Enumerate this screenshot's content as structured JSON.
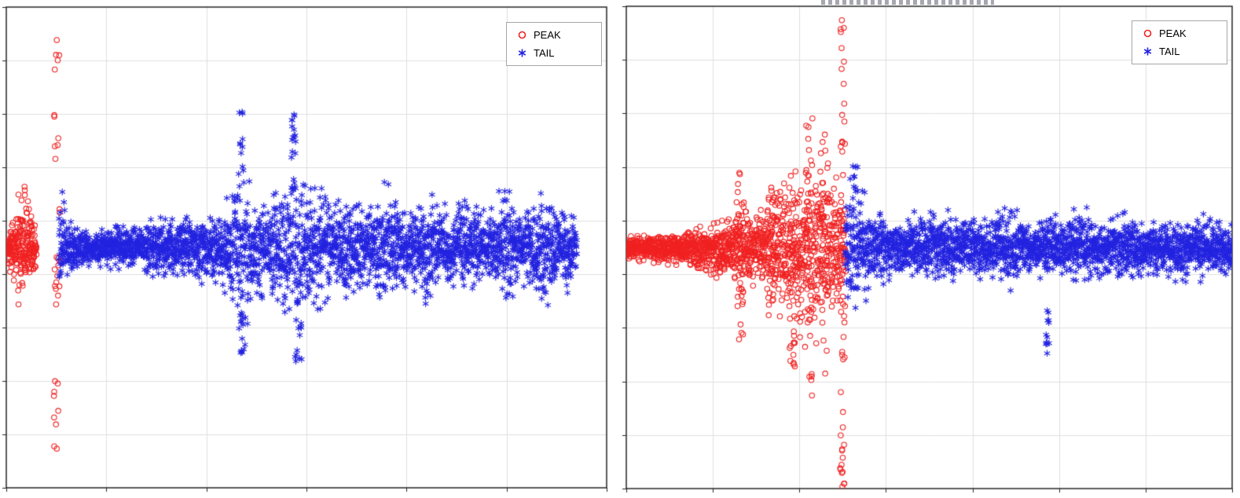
{
  "figure": {
    "background": "#ffffff",
    "axis_color": "#262626",
    "grid_color": "#e0e0e0"
  },
  "chart_data": [
    {
      "id": "left-plot",
      "type": "scatter",
      "title": "",
      "xlabel": "",
      "ylabel": "",
      "xlim": [
        0,
        1
      ],
      "ylim": [
        -1,
        1
      ],
      "grid": {
        "x_divisions": 6,
        "y_divisions": 9,
        "visible": true
      },
      "legend": {
        "position": "top-right",
        "entries": [
          {
            "label": "PEAK",
            "marker": "circle",
            "color": "#f12222"
          },
          {
            "label": "TAIL",
            "marker": "asterisk",
            "color": "#2323e0"
          }
        ]
      },
      "seed": 42,
      "series": [
        {
          "name": "PEAK",
          "marker": "circle",
          "color": "#f12222",
          "band": {
            "x_start": 0.0,
            "x_end": 0.05,
            "step": 0.0012,
            "density": 6,
            "envelope": [
              [
                0.0,
                0.1
              ],
              [
                0.012,
                0.13
              ],
              [
                0.022,
                0.27
              ],
              [
                0.032,
                0.28
              ],
              [
                0.042,
                0.15
              ],
              [
                0.05,
                0.09
              ]
            ]
          },
          "columns": [
            {
              "x": 0.084,
              "y_min": -0.89,
              "y_max": 0.91,
              "count": 34,
              "x_jitter": 0.005
            }
          ]
        },
        {
          "name": "TAIL",
          "marker": "asterisk",
          "color": "#2323e0",
          "band": {
            "x_start": 0.088,
            "x_end": 0.95,
            "step": 0.0012,
            "density": 4,
            "envelope": [
              [
                0.088,
                0.22
              ],
              [
                0.095,
                0.24
              ],
              [
                0.105,
                0.12
              ],
              [
                0.13,
                0.08
              ],
              [
                0.16,
                0.09
              ],
              [
                0.19,
                0.11
              ],
              [
                0.22,
                0.1
              ],
              [
                0.25,
                0.13
              ],
              [
                0.28,
                0.12
              ],
              [
                0.31,
                0.16
              ],
              [
                0.34,
                0.15
              ],
              [
                0.365,
                0.21
              ],
              [
                0.385,
                0.3
              ],
              [
                0.395,
                0.52
              ],
              [
                0.405,
                0.28
              ],
              [
                0.42,
                0.22
              ],
              [
                0.44,
                0.24
              ],
              [
                0.46,
                0.28
              ],
              [
                0.475,
                0.55
              ],
              [
                0.487,
                0.4
              ],
              [
                0.5,
                0.27
              ],
              [
                0.52,
                0.32
              ],
              [
                0.535,
                0.24
              ],
              [
                0.55,
                0.2
              ],
              [
                0.565,
                0.28
              ],
              [
                0.585,
                0.22
              ],
              [
                0.6,
                0.17
              ],
              [
                0.62,
                0.26
              ],
              [
                0.635,
                0.29
              ],
              [
                0.655,
                0.21
              ],
              [
                0.675,
                0.17
              ],
              [
                0.69,
                0.24
              ],
              [
                0.705,
                0.28
              ],
              [
                0.725,
                0.21
              ],
              [
                0.745,
                0.17
              ],
              [
                0.76,
                0.24
              ],
              [
                0.78,
                0.19
              ],
              [
                0.8,
                0.15
              ],
              [
                0.815,
                0.23
              ],
              [
                0.83,
                0.27
              ],
              [
                0.85,
                0.19
              ],
              [
                0.87,
                0.15
              ],
              [
                0.885,
                0.24
              ],
              [
                0.9,
                0.27
              ],
              [
                0.92,
                0.19
              ],
              [
                0.935,
                0.21
              ],
              [
                0.95,
                0.11
              ]
            ]
          },
          "columns": [
            {
              "x": 0.392,
              "y_min": 0.28,
              "y_max": 0.57,
              "count": 10,
              "x_jitter": 0.004
            },
            {
              "x": 0.392,
              "y_min": -0.45,
              "y_max": -0.24,
              "count": 12,
              "x_jitter": 0.005
            },
            {
              "x": 0.478,
              "y_min": 0.3,
              "y_max": 0.58,
              "count": 12,
              "x_jitter": 0.004
            },
            {
              "x": 0.487,
              "y_min": -0.5,
              "y_max": -0.27,
              "count": 10,
              "x_jitter": 0.005
            }
          ]
        }
      ]
    },
    {
      "id": "right-plot",
      "type": "scatter",
      "title": "",
      "xlabel": "",
      "ylabel": "",
      "xlim": [
        0,
        1
      ],
      "ylim": [
        -1,
        1
      ],
      "grid": {
        "x_divisions": 7,
        "y_divisions": 9,
        "visible": true
      },
      "legend": {
        "position": "top-right",
        "entries": [
          {
            "label": "PEAK",
            "marker": "circle",
            "color": "#f12222"
          },
          {
            "label": "TAIL",
            "marker": "asterisk",
            "color": "#2323e0"
          }
        ]
      },
      "seed": 1337,
      "series": [
        {
          "name": "PEAK",
          "marker": "circle",
          "color": "#f12222",
          "band": {
            "x_start": 0.0,
            "x_end": 0.362,
            "step": 0.0012,
            "density": 5,
            "envelope": [
              [
                0.0,
                0.06
              ],
              [
                0.05,
                0.07
              ],
              [
                0.09,
                0.08
              ],
              [
                0.12,
                0.1
              ],
              [
                0.15,
                0.14
              ],
              [
                0.17,
                0.12
              ],
              [
                0.19,
                0.24
              ],
              [
                0.21,
                0.16
              ],
              [
                0.23,
                0.22
              ],
              [
                0.25,
                0.32
              ],
              [
                0.27,
                0.3
              ],
              [
                0.29,
                0.4
              ],
              [
                0.31,
                0.42
              ],
              [
                0.33,
                0.36
              ],
              [
                0.345,
                0.32
              ],
              [
                0.362,
                0.26
              ]
            ]
          },
          "columns": [
            {
              "x": 0.188,
              "y_min": -0.4,
              "y_max": 0.32,
              "count": 26,
              "x_jitter": 0.006
            },
            {
              "x": 0.24,
              "y_min": -0.32,
              "y_max": 0.3,
              "count": 18,
              "x_jitter": 0.006
            },
            {
              "x": 0.275,
              "y_min": -0.56,
              "y_max": 0.46,
              "count": 28,
              "x_jitter": 0.007
            },
            {
              "x": 0.302,
              "y_min": -0.62,
              "y_max": 0.55,
              "count": 30,
              "x_jitter": 0.007
            },
            {
              "x": 0.327,
              "y_min": -0.56,
              "y_max": 0.47,
              "count": 26,
              "x_jitter": 0.007
            },
            {
              "x": 0.357,
              "y_min": -1.0,
              "y_max": 0.97,
              "count": 48,
              "x_jitter": 0.004
            }
          ]
        },
        {
          "name": "TAIL",
          "marker": "asterisk",
          "color": "#2323e0",
          "band": {
            "x_start": 0.362,
            "x_end": 1.0,
            "step": 0.0012,
            "density": 4,
            "envelope": [
              [
                0.362,
                0.3
              ],
              [
                0.375,
                0.34
              ],
              [
                0.39,
                0.25
              ],
              [
                0.41,
                0.18
              ],
              [
                0.43,
                0.15
              ],
              [
                0.455,
                0.12
              ],
              [
                0.475,
                0.16
              ],
              [
                0.495,
                0.13
              ],
              [
                0.515,
                0.18
              ],
              [
                0.535,
                0.15
              ],
              [
                0.555,
                0.12
              ],
              [
                0.575,
                0.16
              ],
              [
                0.595,
                0.13
              ],
              [
                0.615,
                0.15
              ],
              [
                0.635,
                0.18
              ],
              [
                0.655,
                0.14
              ],
              [
                0.675,
                0.12
              ],
              [
                0.695,
                0.15
              ],
              [
                0.715,
                0.13
              ],
              [
                0.735,
                0.16
              ],
              [
                0.755,
                0.18
              ],
              [
                0.775,
                0.14
              ],
              [
                0.795,
                0.12
              ],
              [
                0.815,
                0.16
              ],
              [
                0.835,
                0.14
              ],
              [
                0.855,
                0.12
              ],
              [
                0.875,
                0.15
              ],
              [
                0.895,
                0.13
              ],
              [
                0.915,
                0.16
              ],
              [
                0.935,
                0.14
              ],
              [
                0.955,
                0.15
              ],
              [
                0.975,
                0.13
              ],
              [
                1.0,
                0.11
              ]
            ]
          },
          "columns": [
            {
              "x": 0.695,
              "y_min": -0.47,
              "y_max": -0.24,
              "count": 12,
              "x_jitter": 0.004
            },
            {
              "x": 0.378,
              "y_min": 0.22,
              "y_max": 0.36,
              "count": 8,
              "x_jitter": 0.004
            }
          ]
        }
      ]
    }
  ]
}
